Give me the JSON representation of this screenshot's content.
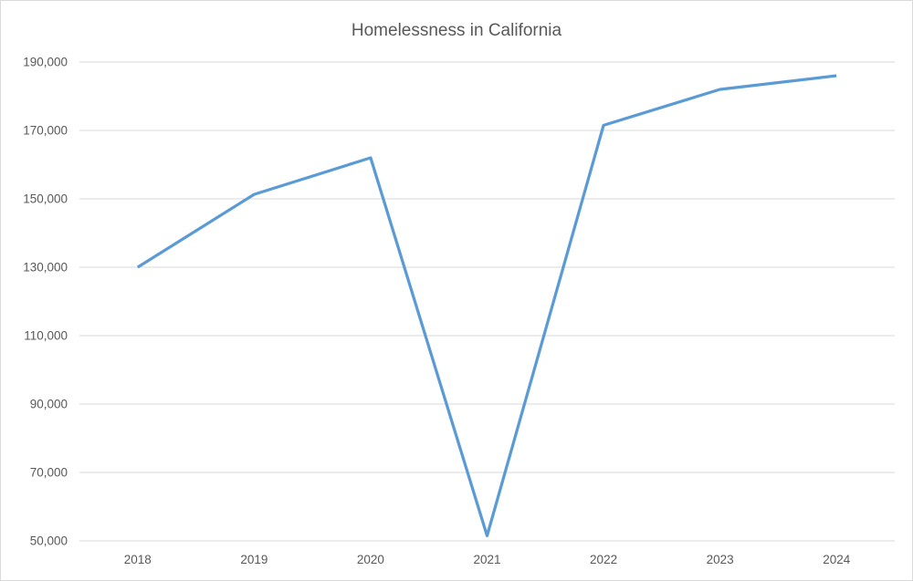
{
  "chart_data": {
    "type": "line",
    "title": "Homelessness in California",
    "categories": [
      "2018",
      "2019",
      "2020",
      "2021",
      "2022",
      "2023",
      "2024"
    ],
    "values": [
      130000,
      151300,
      162000,
      51500,
      171500,
      182000,
      186000
    ],
    "xlabel": "",
    "ylabel": "",
    "ylim": [
      50000,
      190000
    ],
    "ytick_step": 20000,
    "ytick_labels": [
      "50,000",
      "70,000",
      "90,000",
      "110,000",
      "130,000",
      "150,000",
      "170,000",
      "190,000"
    ],
    "grid": "horizontal",
    "legend_position": "none",
    "colors": {
      "line": "#5B9BD5",
      "gridline": "#D9D9D9",
      "axis_text": "#595959",
      "title_text": "#595959",
      "background": "#FFFFFF",
      "border": "#D9D9D9"
    }
  }
}
